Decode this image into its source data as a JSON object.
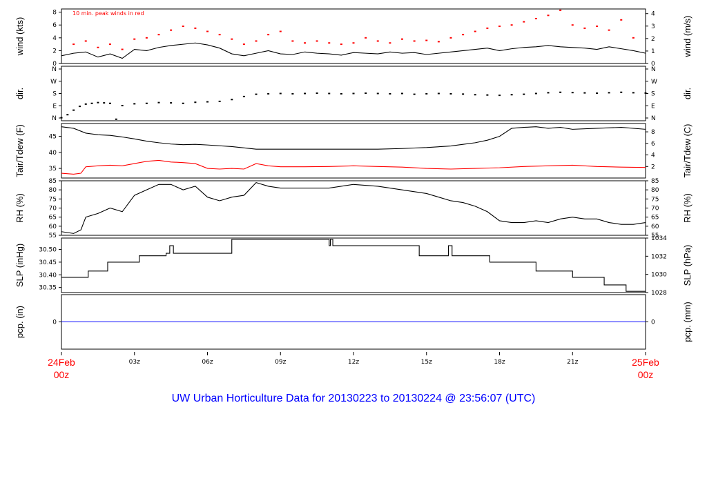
{
  "title": "UW Urban Horticulture Data for 20130223  to  20130224 @ 23:56:07  (UTC)",
  "note": "10 min. peak winds in red",
  "colors": {
    "line": "#000000",
    "peak": "#ff0000",
    "dew": "#ff0000",
    "precip": "#0000ff",
    "title": "#0000ff",
    "date": "#ff0000"
  },
  "x_axis": {
    "start_label": [
      "24Feb",
      "00z"
    ],
    "end_label": [
      "25Feb",
      "00z"
    ],
    "hour_ticks": [
      "03z",
      "06z",
      "09z",
      "12z",
      "15z",
      "18z",
      "21z"
    ]
  },
  "chart_data": [
    {
      "type": "line",
      "panel": "wind",
      "ylabel": "wind (kts)",
      "ylabel_right": "wind (m/s)",
      "ylim": [
        0,
        8.5
      ],
      "yticks": [
        "0",
        "2",
        "4",
        "6",
        "8"
      ],
      "yticks_right": [
        "0",
        "1",
        "2",
        "3",
        "4"
      ],
      "series": [
        {
          "name": "wind",
          "x": [
            0,
            0.5,
            1,
            1.5,
            2,
            2.5,
            3,
            3.5,
            4,
            4.5,
            5,
            5.5,
            6,
            6.5,
            7,
            7.5,
            8,
            8.5,
            9,
            9.5,
            10,
            10.5,
            11,
            11.5,
            12,
            12.5,
            13,
            13.5,
            14,
            14.5,
            15,
            15.5,
            16,
            16.5,
            17,
            17.5,
            18,
            18.5,
            19,
            19.5,
            20,
            20.5,
            21,
            21.5,
            22,
            22.5,
            23,
            23.5,
            24
          ],
          "y": [
            1.2,
            1.6,
            1.8,
            1.0,
            1.5,
            0.8,
            2.2,
            2.0,
            2.5,
            2.8,
            3.0,
            3.2,
            2.9,
            2.4,
            1.5,
            1.2,
            1.6,
            2.0,
            1.5,
            1.4,
            1.8,
            1.6,
            1.5,
            1.3,
            1.7,
            1.6,
            1.5,
            1.8,
            1.6,
            1.7,
            1.4,
            1.6,
            1.8,
            2.0,
            2.2,
            2.4,
            2.0,
            2.3,
            2.5,
            2.6,
            2.8,
            2.6,
            2.5,
            2.4,
            2.2,
            2.6,
            2.3,
            2.0,
            1.6
          ]
        },
        {
          "name": "10 min. peak winds",
          "style": "points",
          "x": [
            0.5,
            1,
            1.5,
            2,
            2.5,
            3,
            3.5,
            4,
            4.5,
            5,
            5.5,
            6,
            6.5,
            7,
            7.5,
            8,
            8.5,
            9,
            9.5,
            10,
            10.5,
            11,
            11.5,
            12,
            12.5,
            13,
            13.5,
            14,
            14.5,
            15,
            15.5,
            16,
            16.5,
            17,
            17.5,
            18,
            18.5,
            19,
            19.5,
            20,
            20.5,
            21,
            21.5,
            22,
            22.5,
            23,
            23.5
          ],
          "y": [
            3.0,
            3.5,
            2.5,
            3.0,
            2.2,
            3.8,
            4.0,
            4.5,
            5.2,
            5.8,
            5.5,
            5.0,
            4.5,
            3.8,
            3.0,
            3.5,
            4.5,
            5.0,
            3.5,
            3.2,
            3.5,
            3.2,
            3.0,
            3.2,
            4.0,
            3.5,
            3.2,
            3.8,
            3.5,
            3.6,
            3.4,
            4.0,
            4.5,
            5.0,
            5.5,
            5.8,
            6.0,
            6.5,
            7.0,
            7.5,
            8.3,
            6.0,
            5.5,
            5.8,
            5.2,
            6.8,
            4.0
          ]
        }
      ]
    },
    {
      "type": "scatter",
      "panel": "direction",
      "ylabel": "dir.",
      "ylabel_right": "dir.",
      "ylim": [
        0,
        360
      ],
      "yticks": [
        "N",
        "E",
        "S",
        "W",
        "N"
      ],
      "yticks_right": [
        "N",
        "E",
        "S",
        "W",
        "N"
      ],
      "series": [
        {
          "name": "direction",
          "x": [
            0,
            0.25,
            0.5,
            0.75,
            1,
            1.25,
            1.5,
            1.75,
            2,
            2.25,
            2.5,
            3,
            3.5,
            4,
            4.5,
            5,
            5.5,
            6,
            6.5,
            7,
            7.5,
            8,
            8.5,
            9,
            9.5,
            10,
            10.5,
            11,
            11.5,
            12,
            12.5,
            13,
            13.5,
            14,
            14.5,
            15,
            15.5,
            16,
            16.5,
            17,
            17.5,
            18,
            18.5,
            19,
            19.5,
            20,
            20.5,
            21,
            21.5,
            22,
            22.5,
            23,
            23.5,
            24
          ],
          "y": [
            20,
            40,
            70,
            95,
            110,
            115,
            120,
            118,
            115,
            10,
            100,
            112,
            115,
            120,
            118,
            115,
            122,
            125,
            128,
            140,
            160,
            175,
            178,
            180,
            178,
            180,
            182,
            180,
            178,
            180,
            182,
            180,
            178,
            180,
            175,
            178,
            180,
            178,
            176,
            172,
            170,
            168,
            172,
            175,
            180,
            185,
            188,
            186,
            184,
            182,
            185,
            188,
            185,
            183
          ]
        }
      ]
    },
    {
      "type": "line",
      "panel": "temperature",
      "ylabel": "Tair/Tdew (F)",
      "ylabel_right": "Tair/Tdew (C)",
      "ylim": [
        32,
        49
      ],
      "yticks": [
        "35",
        "40",
        "45"
      ],
      "yticks_right": [
        "2",
        "4",
        "6",
        "8"
      ],
      "series": [
        {
          "name": "Tair",
          "x": [
            0,
            0.5,
            1,
            1.5,
            2,
            2.5,
            3,
            3.5,
            4,
            4.5,
            5,
            5.5,
            6,
            7,
            8,
            9,
            10,
            11,
            12,
            13,
            14,
            15,
            16,
            16.5,
            17,
            17.5,
            18,
            18.5,
            19,
            19.5,
            20,
            20.5,
            21,
            22,
            23,
            24
          ],
          "y": [
            48,
            47.5,
            46.0,
            45.5,
            45.3,
            44.8,
            44.2,
            43.5,
            43.0,
            42.6,
            42.4,
            42.5,
            42.3,
            41.8,
            41.0,
            41.0,
            41.0,
            41.0,
            41.0,
            41.0,
            41.2,
            41.5,
            42.0,
            42.5,
            43.0,
            43.8,
            45.0,
            47.5,
            47.8,
            48.0,
            47.5,
            47.8,
            47.2,
            47.5,
            47.8,
            47.2
          ]
        },
        {
          "name": "Tdew",
          "x": [
            0,
            0.5,
            0.8,
            1,
            1.5,
            2,
            2.5,
            3,
            3.5,
            4,
            4.5,
            5,
            5.5,
            6,
            6.5,
            7,
            7.5,
            8,
            8.5,
            9,
            10,
            11,
            12,
            13,
            14,
            15,
            16,
            17,
            18,
            19,
            20,
            21,
            22,
            23,
            24
          ],
          "y": [
            33.5,
            33.2,
            33.5,
            35.5,
            35.8,
            36.0,
            35.8,
            36.5,
            37.2,
            37.5,
            37.0,
            36.8,
            36.5,
            35.0,
            34.8,
            35.0,
            34.8,
            36.5,
            35.8,
            35.5,
            35.5,
            35.6,
            35.8,
            35.6,
            35.4,
            35.0,
            34.8,
            35.0,
            35.2,
            35.6,
            35.8,
            36.0,
            35.6,
            35.4,
            35.3
          ]
        }
      ]
    },
    {
      "type": "line",
      "panel": "relative-humidity",
      "ylabel": "RH (%)",
      "ylabel_right": "RH (%)",
      "ylim": [
        55,
        85
      ],
      "yticks": [
        "55",
        "60",
        "65",
        "70",
        "75",
        "80",
        "85"
      ],
      "yticks_right": [
        "55",
        "60",
        "65",
        "70",
        "75",
        "80",
        "85"
      ],
      "series": [
        {
          "name": "RH",
          "x": [
            0,
            0.5,
            0.8,
            1,
            1.5,
            2,
            2.5,
            3,
            3.5,
            4,
            4.5,
            5,
            5.5,
            6,
            6.5,
            7,
            7.5,
            8,
            8.5,
            9,
            10,
            11,
            12,
            13,
            14,
            15,
            15.5,
            16,
            16.5,
            17,
            17.5,
            18,
            18.5,
            19,
            19.5,
            20,
            20.5,
            21,
            21.5,
            22,
            22.5,
            23,
            23.5,
            24
          ],
          "y": [
            57,
            56,
            58,
            65,
            67,
            70,
            68,
            77,
            80,
            83,
            83,
            80,
            82,
            76,
            74,
            76,
            77,
            84,
            82,
            81,
            81,
            81,
            83,
            82,
            80,
            78,
            76,
            74,
            73,
            71,
            68,
            63,
            62,
            62,
            63,
            62,
            64,
            65,
            64,
            64,
            62,
            61,
            61,
            62
          ]
        }
      ]
    },
    {
      "type": "line",
      "panel": "sea-level-pressure",
      "ylabel": "SLP (inHg)",
      "ylabel_right": "SLP (hPa)",
      "ylim": [
        30.33,
        30.545
      ],
      "yticks": [
        "30.35",
        "30.40",
        "30.45",
        "30.50"
      ],
      "yticks_right": [
        "1028",
        "1030",
        "1032",
        "1034"
      ],
      "series": [
        {
          "name": "SLP",
          "step": true,
          "x": [
            0,
            1.1,
            1.9,
            3.2,
            4.3,
            4.45,
            4.6,
            7.0,
            11.0,
            11.05,
            11.15,
            11.2,
            14.7,
            15.9,
            16.05,
            17.6,
            19.5,
            21.0,
            22.3,
            23.2,
            24
          ],
          "y": [
            30.39,
            30.415,
            30.45,
            30.475,
            30.485,
            30.515,
            30.485,
            30.54,
            30.515,
            30.54,
            30.515,
            30.515,
            30.475,
            30.515,
            30.475,
            30.45,
            30.415,
            30.39,
            30.36,
            30.335,
            30.335
          ]
        }
      ]
    },
    {
      "type": "line",
      "panel": "precipitation",
      "ylabel": "pcp. (in)",
      "ylabel_right": "pcp. (mm)",
      "ylim": [
        -1,
        1
      ],
      "yticks": [
        "0"
      ],
      "yticks_right": [
        "0"
      ],
      "series": [
        {
          "name": "precip",
          "x": [
            0,
            24
          ],
          "y": [
            0,
            0
          ]
        }
      ]
    }
  ]
}
